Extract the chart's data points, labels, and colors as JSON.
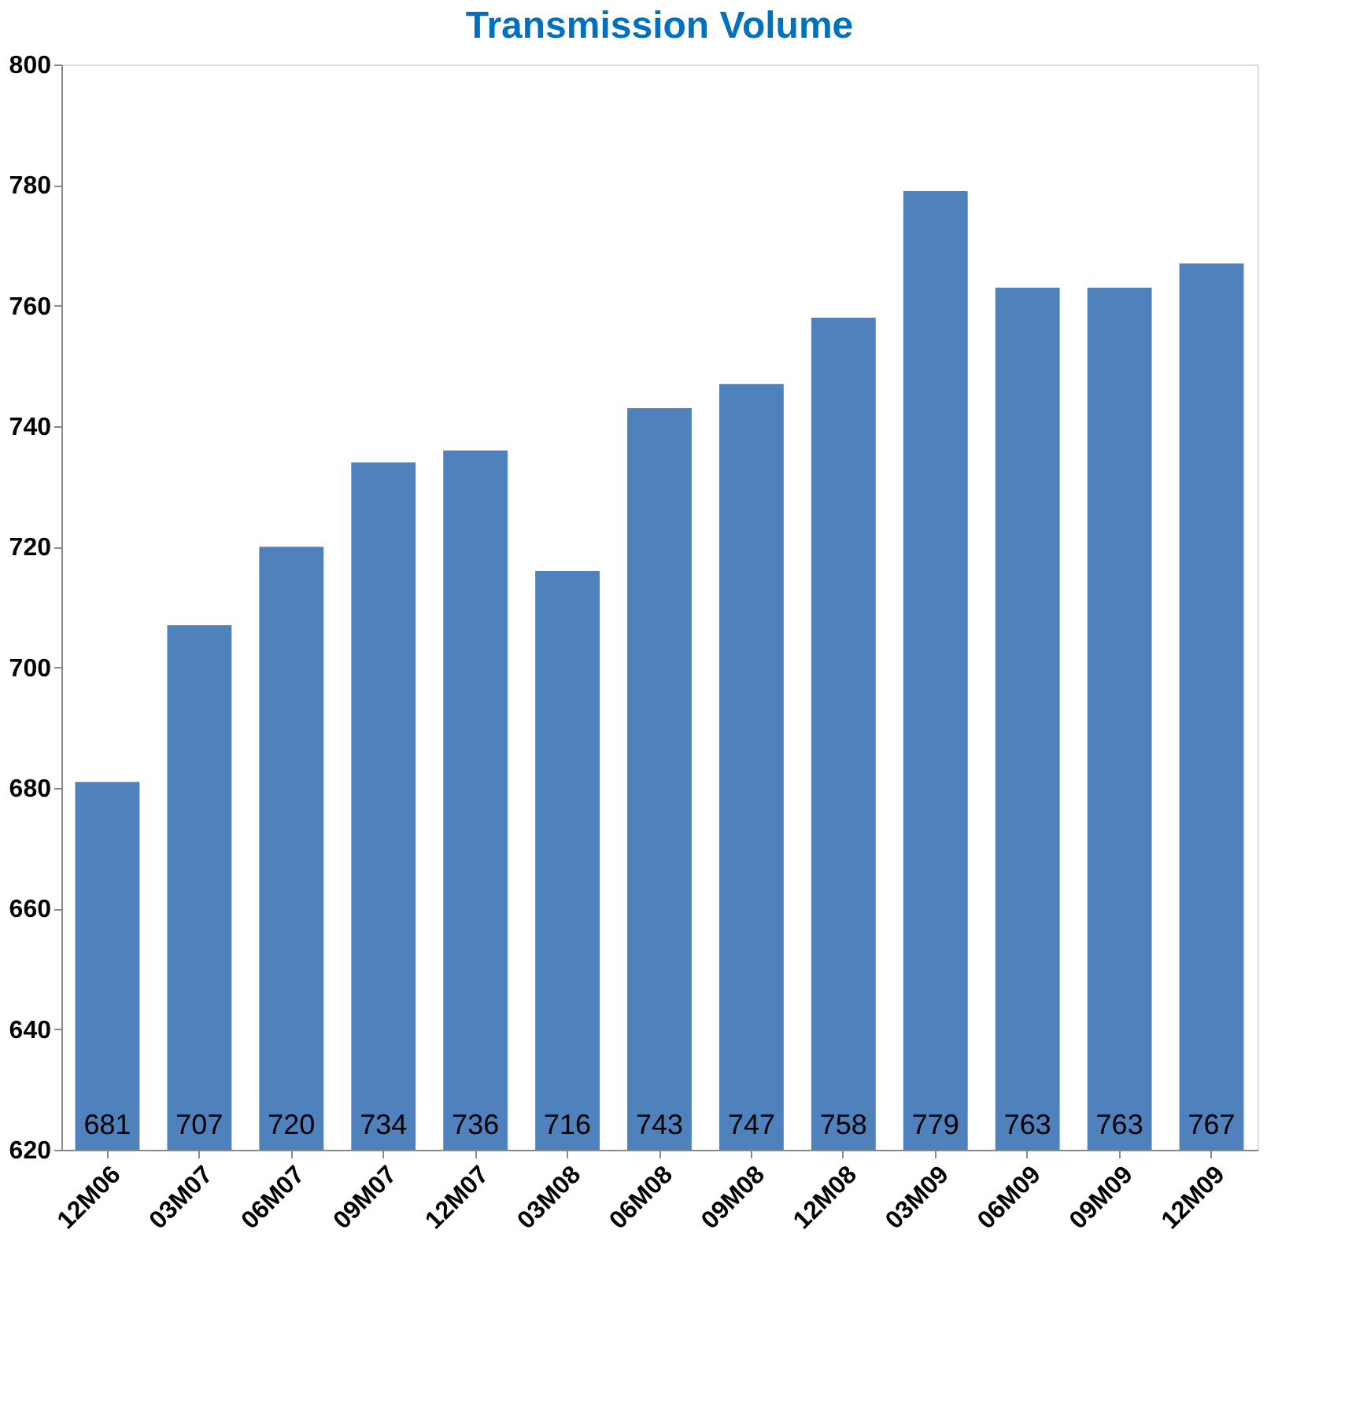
{
  "chart_data": {
    "type": "bar",
    "title": "Transmission Volume",
    "categories": [
      "12M06",
      "03M07",
      "06M07",
      "09M07",
      "12M07",
      "03M08",
      "06M08",
      "09M08",
      "12M08",
      "03M09",
      "06M09",
      "09M09",
      "12M09"
    ],
    "values": [
      681,
      707,
      720,
      734,
      736,
      716,
      743,
      747,
      758,
      779,
      763,
      763,
      767
    ],
    "color": "#4f81bd",
    "ylim": [
      620,
      800
    ],
    "yticks": [
      620,
      640,
      660,
      680,
      700,
      720,
      740,
      760,
      780,
      800
    ],
    "grid": false,
    "data_labels": true
  }
}
